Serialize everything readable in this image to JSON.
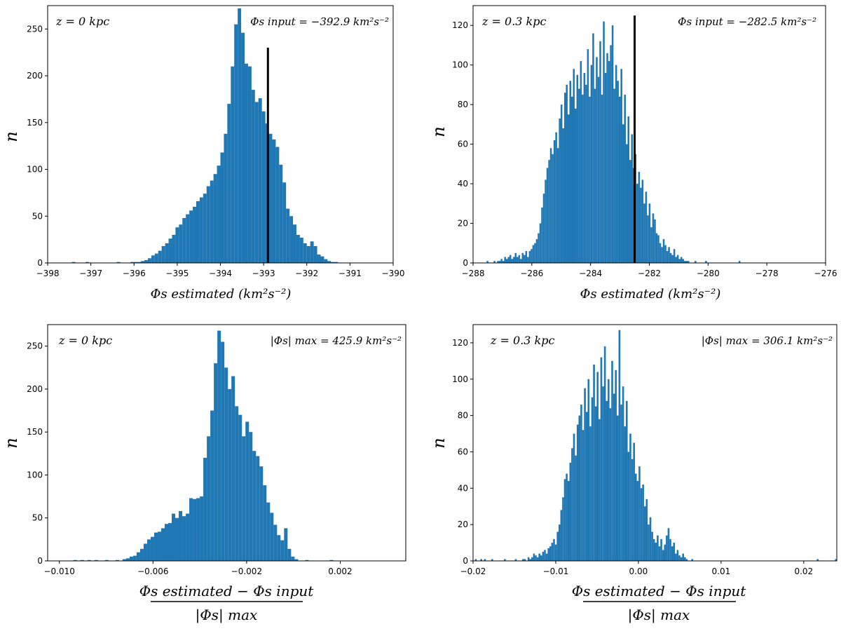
{
  "chart_data": [
    {
      "type": "histogram",
      "id": "tl",
      "annotation": "z = 0 kpc",
      "input_label": "Φs input = −392.9 km²s⁻²",
      "input_value": -392.9,
      "input_line_top": 230,
      "xlim": [
        -398,
        -390
      ],
      "ylim": [
        0,
        275
      ],
      "xticks": [
        -398,
        -397,
        -396,
        -395,
        -394,
        -393,
        -392,
        -391,
        -390
      ],
      "yticks": [
        0,
        50,
        100,
        150,
        200,
        250
      ],
      "xlabel": "Φs estimated (km²s⁻²)",
      "ylabel": "n",
      "bin_start": -398.0,
      "bin_width": 0.08,
      "counts": [
        0,
        0,
        0,
        0,
        0,
        0,
        0,
        1,
        0,
        0,
        0,
        1,
        0,
        0,
        0,
        0,
        0,
        0,
        0,
        0,
        1,
        0,
        0,
        0,
        1,
        1,
        1,
        2,
        3,
        5,
        8,
        10,
        13,
        18,
        21,
        26,
        30,
        38,
        41,
        48,
        52,
        56,
        60,
        66,
        70,
        74,
        82,
        88,
        95,
        104,
        118,
        138,
        170,
        210,
        255,
        272,
        246,
        213,
        210,
        185,
        172,
        176,
        162,
        149,
        138,
        132,
        124,
        105,
        86,
        58,
        50,
        41,
        30,
        27,
        21,
        18,
        23,
        18,
        9,
        7,
        4,
        2,
        1,
        1,
        0,
        0,
        0,
        0,
        0,
        0,
        0,
        0,
        0,
        0,
        0,
        0,
        0,
        0,
        0,
        0
      ]
    },
    {
      "type": "histogram",
      "id": "tr",
      "annotation": "z = 0.3 kpc",
      "input_label": "Φs input = −282.5 km²s⁻²",
      "input_value": -282.5,
      "input_line_top": 125,
      "xlim": [
        -288,
        -276
      ],
      "ylim": [
        0,
        130
      ],
      "xticks": [
        -288,
        -286,
        -284,
        -282,
        -280,
        -278,
        -276
      ],
      "yticks": [
        0,
        20,
        40,
        60,
        80,
        100,
        120
      ],
      "xlabel": "Φs estimated (km²s⁻²)",
      "ylabel": "n",
      "bin_start": -287.6,
      "bin_width": 0.06,
      "counts": [
        0,
        1,
        0,
        0,
        0,
        1,
        0,
        1,
        1,
        2,
        1,
        3,
        2,
        3,
        4,
        2,
        3,
        5,
        3,
        4,
        2,
        5,
        4,
        6,
        3,
        6,
        7,
        9,
        10,
        12,
        15,
        20,
        28,
        35,
        42,
        48,
        52,
        58,
        55,
        62,
        66,
        58,
        73,
        80,
        68,
        86,
        90,
        75,
        92,
        84,
        98,
        78,
        95,
        88,
        102,
        85,
        96,
        90,
        108,
        84,
        100,
        116,
        88,
        104,
        94,
        112,
        85,
        122,
        96,
        106,
        102,
        110,
        120,
        88,
        100,
        92,
        84,
        98,
        70,
        85,
        60,
        74,
        52,
        65,
        48,
        55,
        40,
        46,
        38,
        42,
        30,
        36,
        24,
        30,
        18,
        25,
        22,
        15,
        14,
        10,
        8,
        12,
        9,
        6,
        8,
        5,
        4,
        7,
        3,
        4,
        2,
        3,
        2,
        1,
        1,
        1,
        0,
        0,
        0,
        1,
        0,
        0,
        0,
        0,
        0,
        1,
        0,
        0,
        0,
        0,
        0,
        0,
        0,
        0,
        0,
        0,
        0,
        0,
        0,
        0,
        0,
        0,
        0,
        0,
        1,
        0,
        0,
        0,
        0,
        0,
        0,
        0,
        0,
        0,
        0,
        0,
        0,
        0,
        0,
        0,
        0,
        0,
        0,
        0,
        0,
        0,
        0,
        0,
        0,
        0,
        0,
        0,
        0,
        0,
        0,
        0,
        0,
        0,
        0,
        0,
        0,
        0,
        0,
        0,
        0,
        0,
        0,
        0,
        0,
        0,
        0,
        0,
        0,
        0,
        1
      ]
    },
    {
      "type": "histogram",
      "id": "bl",
      "annotation": "z = 0 kpc",
      "max_label": "|Φs| max = 425.9 km²s⁻²",
      "xlim": [
        -0.0105,
        0.0048
      ],
      "ylim": [
        0,
        275
      ],
      "xticks": [
        -0.01,
        -0.006,
        -0.002,
        0.002
      ],
      "xtick_labels": [
        "−0.010",
        "−0.006",
        "−0.002",
        "0.002"
      ],
      "yticks": [
        0,
        50,
        100,
        150,
        200,
        250
      ],
      "xlabel_num": "Φs estimated − Φs input",
      "xlabel_den": "|Φs| max",
      "ylabel": "n",
      "bin_start": -0.01,
      "bin_width": 0.00015,
      "counts": [
        0,
        0,
        0,
        0,
        1,
        0,
        1,
        0,
        1,
        0,
        1,
        0,
        0,
        1,
        0,
        0,
        1,
        0,
        2,
        3,
        5,
        6,
        10,
        14,
        20,
        25,
        28,
        33,
        34,
        38,
        43,
        44,
        55,
        50,
        58,
        52,
        55,
        73,
        72,
        73,
        75,
        120,
        145,
        175,
        230,
        268,
        255,
        225,
        200,
        215,
        180,
        170,
        145,
        162,
        150,
        128,
        122,
        110,
        88,
        68,
        56,
        42,
        30,
        24,
        38,
        14,
        5,
        2,
        0,
        0,
        1,
        0,
        0,
        0,
        0,
        0,
        0,
        1,
        0,
        0,
        0,
        0,
        0
      ]
    },
    {
      "type": "histogram",
      "id": "br",
      "annotation": "z = 0.3 kpc",
      "max_label": "|Φs| max = 306.1 km²s⁻²",
      "xlim": [
        -0.02,
        0.024
      ],
      "ylim": [
        0,
        130
      ],
      "xticks": [
        -0.02,
        -0.01,
        0.0,
        0.01,
        0.02
      ],
      "xtick_labels": [
        "−0.02",
        "−0.01",
        "0.00",
        "0.01",
        "0.02"
      ],
      "yticks": [
        0,
        20,
        40,
        60,
        80,
        100,
        120
      ],
      "xlabel_num": "Φs estimated − Φs input",
      "xlabel_den": "|Φs| max",
      "ylabel": "n",
      "bin_start": -0.02,
      "bin_width": 0.00022,
      "counts": [
        0,
        1,
        0,
        0,
        1,
        0,
        1,
        0,
        0,
        0,
        1,
        0,
        0,
        0,
        0,
        0,
        0,
        1,
        0,
        0,
        0,
        0,
        0,
        1,
        0,
        0,
        0,
        1,
        1,
        0,
        2,
        1,
        2,
        4,
        3,
        2,
        4,
        3,
        5,
        6,
        4,
        7,
        8,
        10,
        12,
        9,
        16,
        20,
        28,
        35,
        45,
        48,
        44,
        54,
        62,
        70,
        58,
        75,
        80,
        86,
        72,
        95,
        82,
        100,
        74,
        90,
        108,
        85,
        104,
        78,
        112,
        96,
        118,
        88,
        100,
        84,
        110,
        92,
        105,
        80,
        127,
        86,
        96,
        74,
        88,
        60,
        70,
        56,
        65,
        48,
        44,
        52,
        40,
        42,
        30,
        34,
        20,
        24,
        16,
        12,
        10,
        14,
        8,
        12,
        6,
        9,
        14,
        18,
        12,
        8,
        10,
        4,
        6,
        3,
        2,
        4,
        2,
        1,
        0,
        0,
        1,
        0,
        0,
        0,
        0,
        0,
        0,
        0,
        0,
        0,
        0,
        0,
        0,
        0,
        0,
        0,
        0,
        0,
        0,
        0,
        0,
        0,
        0,
        0,
        0,
        0,
        0,
        0,
        0,
        0,
        0,
        0,
        0,
        0,
        0,
        0,
        0,
        0,
        0,
        0,
        0,
        0,
        0,
        0,
        0,
        0,
        0,
        0,
        0,
        0,
        0,
        0,
        0,
        0,
        0,
        0,
        0,
        0,
        0,
        0,
        0,
        0,
        0,
        0,
        0,
        0,
        0,
        0,
        0,
        1,
        0,
        0,
        0,
        0,
        0,
        0,
        0,
        0,
        0,
        1
      ]
    }
  ],
  "colors": {
    "bar": "#1f77b4",
    "line": "#000000",
    "axis": "#000000"
  }
}
